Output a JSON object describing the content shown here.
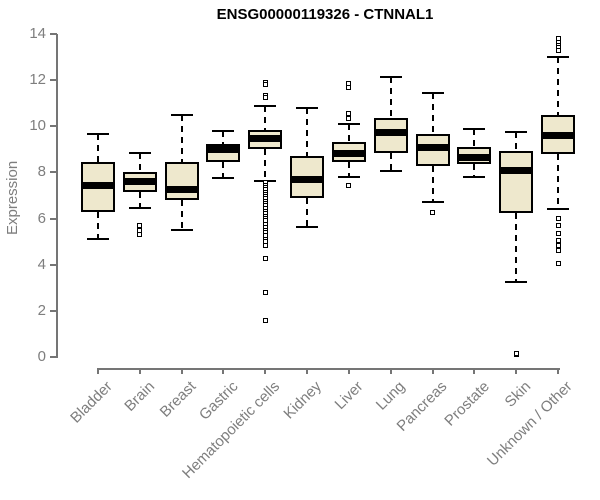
{
  "title": "ENSG00000119326 - CTNNAL1",
  "colors": {
    "box_fill": "#EEE8CD",
    "box_border": "#000000",
    "axis_line": "#757575",
    "axis_text": "#7e7e7e",
    "title_text": "#000000",
    "background": "#ffffff"
  },
  "chart_data": {
    "type": "boxplot",
    "title": "ENSG00000119326 - CTNNAL1",
    "xlabel": "",
    "ylabel": "Expression",
    "ylim": [
      0,
      14
    ],
    "yticks": [
      0,
      2,
      4,
      6,
      8,
      10,
      12,
      14
    ],
    "grid": false,
    "legend": false,
    "whisker_style": "dashed",
    "outlier_marker": "open-square",
    "categories": [
      "Bladder",
      "Brain",
      "Breast",
      "Gastric",
      "Hematopoietic cells",
      "Kidney",
      "Liver",
      "Lung",
      "Pancreas",
      "Prostate",
      "Skin",
      "Unknown / Other"
    ],
    "series": [
      {
        "name": "Bladder",
        "whisker_low": 5.1,
        "q1": 6.3,
        "median": 7.45,
        "q3": 8.45,
        "whisker_high": 9.65,
        "outliers": []
      },
      {
        "name": "Brain",
        "whisker_low": 6.45,
        "q1": 7.15,
        "median": 7.6,
        "q3": 8.0,
        "whisker_high": 8.85,
        "outliers": [
          5.7,
          5.5,
          5.3
        ]
      },
      {
        "name": "Breast",
        "whisker_low": 5.5,
        "q1": 6.8,
        "median": 7.25,
        "q3": 8.45,
        "whisker_high": 10.5,
        "outliers": []
      },
      {
        "name": "Gastric",
        "whisker_low": 7.75,
        "q1": 8.45,
        "median": 9.0,
        "q3": 9.25,
        "whisker_high": 9.8,
        "outliers": []
      },
      {
        "name": "Hematopoietic cells",
        "whisker_low": 7.65,
        "q1": 9.0,
        "median": 9.45,
        "q3": 9.85,
        "whisker_high": 10.9,
        "outliers": [
          11.9,
          11.8,
          11.35,
          11.25,
          7.55,
          7.45,
          7.35,
          7.25,
          7.15,
          7.05,
          6.95,
          6.85,
          6.75,
          6.65,
          6.55,
          6.45,
          6.3,
          6.2,
          6.1,
          6.0,
          5.9,
          5.75,
          5.6,
          5.5,
          5.4,
          5.25,
          5.1,
          5.0,
          4.85,
          4.25,
          2.8,
          1.6
        ]
      },
      {
        "name": "Kidney",
        "whisker_low": 5.65,
        "q1": 6.9,
        "median": 7.7,
        "q3": 8.7,
        "whisker_high": 10.8,
        "outliers": []
      },
      {
        "name": "Liver",
        "whisker_low": 7.8,
        "q1": 8.45,
        "median": 8.8,
        "q3": 9.3,
        "whisker_high": 10.1,
        "outliers": [
          11.85,
          11.7,
          10.55,
          10.35,
          7.45
        ]
      },
      {
        "name": "Lung",
        "whisker_low": 8.05,
        "q1": 8.85,
        "median": 9.75,
        "q3": 10.35,
        "whisker_high": 12.15,
        "outliers": []
      },
      {
        "name": "Pancreas",
        "whisker_low": 6.7,
        "q1": 8.3,
        "median": 9.1,
        "q3": 9.65,
        "whisker_high": 11.45,
        "outliers": [
          6.25
        ]
      },
      {
        "name": "Prostate",
        "whisker_low": 7.8,
        "q1": 8.35,
        "median": 8.65,
        "q3": 9.1,
        "whisker_high": 9.9,
        "outliers": []
      },
      {
        "name": "Skin",
        "whisker_low": 3.25,
        "q1": 6.25,
        "median": 8.1,
        "q3": 8.95,
        "whisker_high": 9.75,
        "outliers": [
          0.1,
          0.15
        ]
      },
      {
        "name": "Unknown / Other",
        "whisker_low": 6.4,
        "q1": 8.8,
        "median": 9.6,
        "q3": 10.5,
        "whisker_high": 13.0,
        "outliers": [
          13.8,
          13.65,
          13.5,
          13.4,
          13.3,
          6.0,
          5.7,
          5.35,
          5.05,
          4.85,
          4.6,
          4.05
        ]
      }
    ]
  }
}
